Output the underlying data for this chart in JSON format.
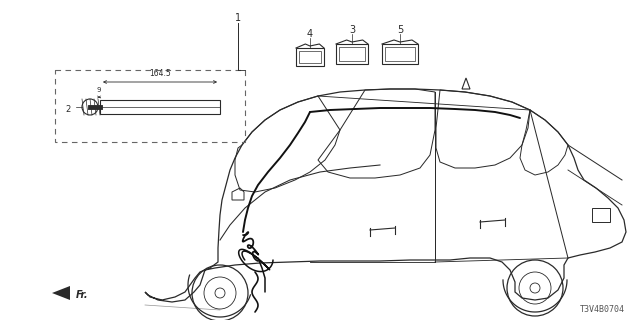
{
  "bg_color": "#ffffff",
  "lc": "#2a2a2a",
  "cc": "#2a2a2a",
  "wc": "#111111",
  "part_number": "T3V4B0704",
  "fr_label": "Fr.",
  "dim_text": "164.5",
  "figw": 6.4,
  "figh": 3.2,
  "dpi": 100
}
